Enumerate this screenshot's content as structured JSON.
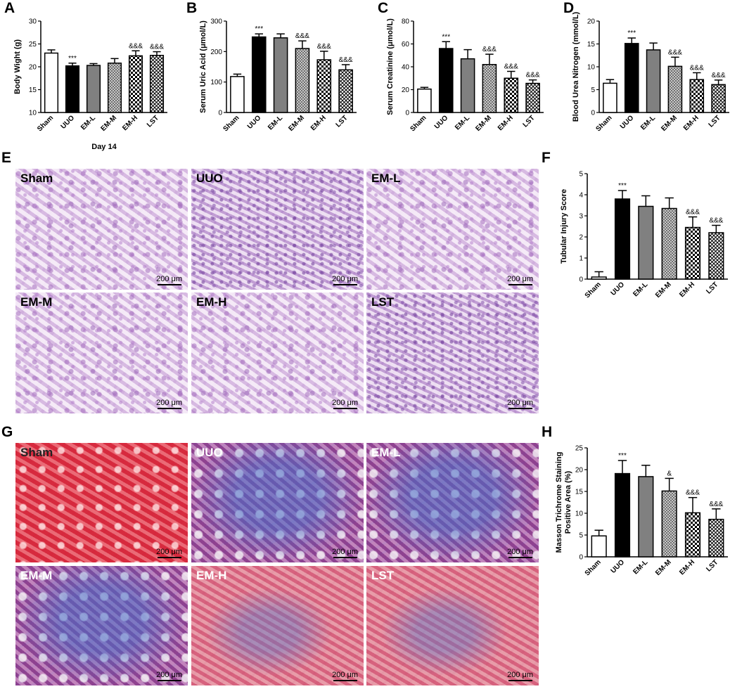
{
  "figure": {
    "panel_labels": {
      "A": "A",
      "B": "B",
      "C": "C",
      "D": "D",
      "E": "E",
      "F": "F",
      "G": "G",
      "H": "H"
    },
    "micrographs": {
      "scale_text": "200 μm",
      "he": [
        "Sham",
        "UUO",
        "EM-L",
        "EM-M",
        "EM-H",
        "LST"
      ],
      "masson": [
        "Sham",
        "UUO",
        "EM-L",
        "EM-M",
        "EM-H",
        "LST"
      ]
    },
    "colors": {
      "sham": "#ffffff",
      "uuo": "#000000",
      "eml": "#808080",
      "pattern_mid": "#9a9a9a",
      "pattern_dark": "#000000"
    }
  },
  "chart_data": [
    {
      "type": "bar",
      "panel": "A",
      "categories": [
        "Sham",
        "UUO",
        "EM-L",
        "EM-M",
        "EM-H",
        "LST"
      ],
      "values": [
        23,
        20.2,
        20.3,
        20.8,
        22.4,
        22.5
      ],
      "errors": [
        0.7,
        0.6,
        0.4,
        1.0,
        1.1,
        0.8
      ],
      "ylabel": "Body Wight (g)",
      "xlabel": "Day 14",
      "ylim": [
        10,
        30
      ],
      "yticks": [
        10,
        15,
        20,
        25,
        30
      ],
      "annotations": [
        "",
        "***",
        "",
        "",
        "&&&",
        "&&&"
      ]
    },
    {
      "type": "bar",
      "panel": "B",
      "categories": [
        "Sham",
        "UUO",
        "EM-L",
        "EM-M",
        "EM-H",
        "LST"
      ],
      "values": [
        118,
        248,
        245,
        210,
        173,
        140
      ],
      "errors": [
        8,
        10,
        13,
        25,
        28,
        17
      ],
      "ylabel": "Serum Uric Acid (μmol/L)",
      "xlabel": "",
      "ylim": [
        0,
        300
      ],
      "yticks": [
        0,
        100,
        200,
        300
      ],
      "annotations": [
        "",
        "***",
        "",
        "&&&",
        "&&&",
        "&&&"
      ]
    },
    {
      "type": "bar",
      "panel": "C",
      "categories": [
        "Sham",
        "UUO",
        "EM-L",
        "EM-M",
        "EM-H",
        "LST"
      ],
      "values": [
        20.5,
        56,
        47,
        42,
        30,
        25.5
      ],
      "errors": [
        1.5,
        6,
        8,
        9,
        6,
        3
      ],
      "ylabel": "Serum Creatinine (μmol/L)",
      "xlabel": "",
      "ylim": [
        0,
        80
      ],
      "yticks": [
        0,
        20,
        40,
        60,
        80
      ],
      "annotations": [
        "",
        "***",
        "",
        "&&&",
        "&&&",
        "&&&"
      ]
    },
    {
      "type": "bar",
      "panel": "D",
      "categories": [
        "Sham",
        "UUO",
        "EM-L",
        "EM-M",
        "EM-H",
        "LST"
      ],
      "values": [
        6.4,
        15.1,
        13.7,
        10.1,
        7.2,
        6.1
      ],
      "errors": [
        0.8,
        1.2,
        1.5,
        2.0,
        1.5,
        1.0
      ],
      "ylabel": "Blood Urea Nitrogen (mmol/L)",
      "xlabel": "",
      "ylim": [
        0,
        20
      ],
      "yticks": [
        0,
        5,
        10,
        15,
        20
      ],
      "annotations": [
        "",
        "***",
        "",
        "&&&",
        "&&&",
        "&&&"
      ]
    },
    {
      "type": "bar",
      "panel": "F",
      "categories": [
        "Sham",
        "UUO",
        "EM-L",
        "EM-M",
        "EM-H",
        "LST"
      ],
      "values": [
        0.1,
        3.8,
        3.45,
        3.35,
        2.45,
        2.2
      ],
      "errors": [
        0.25,
        0.4,
        0.5,
        0.5,
        0.5,
        0.35
      ],
      "ylabel": "Tubular Injury Score",
      "xlabel": "",
      "ylim": [
        0,
        5
      ],
      "yticks": [
        0,
        1,
        2,
        3,
        4,
        5
      ],
      "annotations": [
        "",
        "***",
        "",
        "",
        "&&&",
        "&&&"
      ]
    },
    {
      "type": "bar",
      "panel": "H",
      "categories": [
        "Sham",
        "UUO",
        "EM-L",
        "EM-M",
        "EM-H",
        "LST"
      ],
      "values": [
        4.8,
        19.1,
        18.4,
        15.1,
        10.1,
        8.6
      ],
      "errors": [
        1.3,
        3.0,
        2.6,
        2.9,
        3.5,
        2.4
      ],
      "ylabel": "Masson Trichrome Staining\nPositive Area (%)",
      "xlabel": "",
      "ylim": [
        0,
        25
      ],
      "yticks": [
        0,
        5,
        10,
        15,
        20,
        25
      ],
      "annotations": [
        "",
        "***",
        "",
        "&",
        "&&&",
        "&&&"
      ]
    }
  ]
}
